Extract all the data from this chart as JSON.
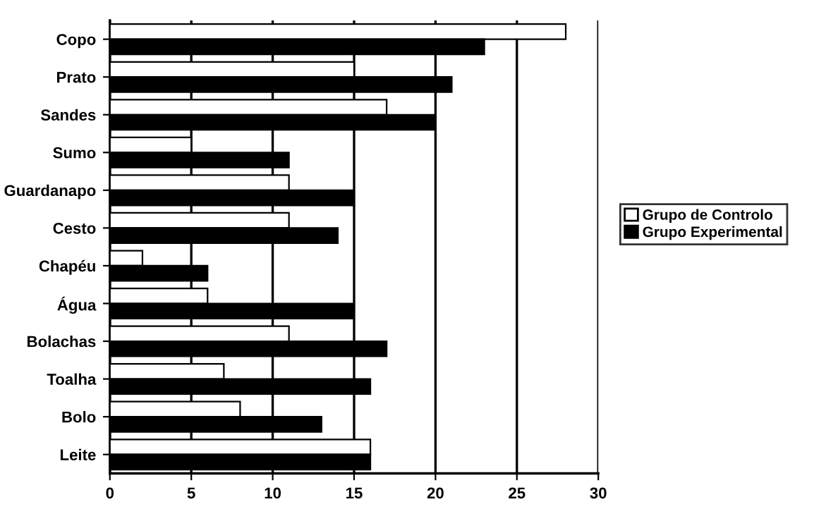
{
  "chart_data": {
    "type": "bar",
    "orientation": "horizontal",
    "categories": [
      "Copo",
      "Prato",
      "Sandes",
      "Sumo",
      "Guardanapo",
      "Cesto",
      "Chapéu",
      "Água",
      "Bolachas",
      "Toalha",
      "Bolo",
      "Leite"
    ],
    "series": [
      {
        "name": "Grupo de Controlo",
        "color": "#ffffff",
        "values": [
          28,
          15,
          17,
          5,
          11,
          11,
          2,
          6,
          11,
          7,
          8,
          16
        ]
      },
      {
        "name": "Grupo Experimental",
        "color": "#000000",
        "values": [
          23,
          21,
          20,
          11,
          15,
          14,
          6,
          15,
          17,
          16,
          13,
          16
        ]
      }
    ],
    "xlim": [
      0,
      30
    ],
    "xticks": [
      0,
      5,
      10,
      15,
      20,
      25,
      30
    ],
    "grid": "x",
    "legend": "right"
  }
}
